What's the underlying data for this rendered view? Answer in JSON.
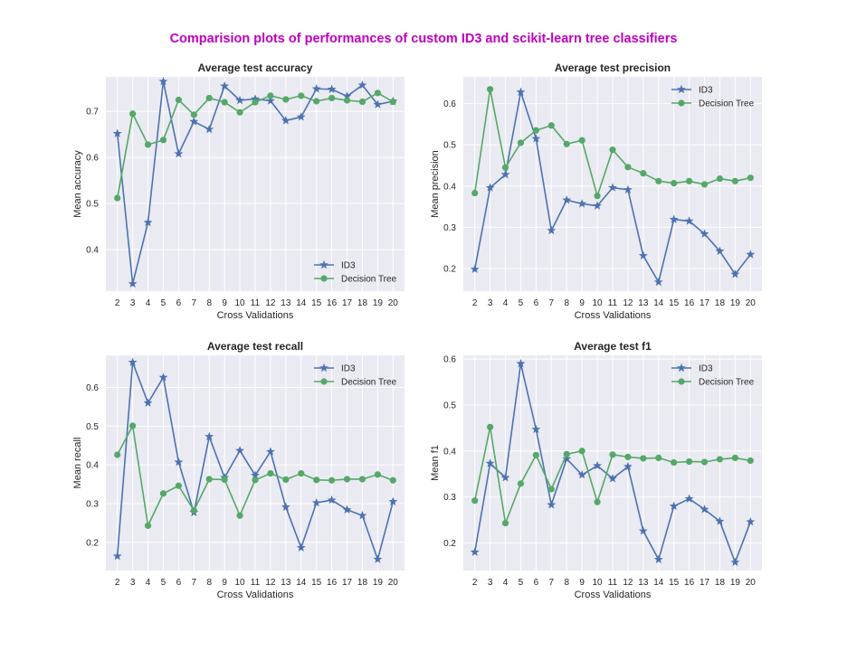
{
  "suptitle": "Comparision plots of performances of custom ID3 and scikit-learn tree classifiers",
  "colors": {
    "id3": "#4c72b0",
    "dt": "#55a868",
    "panel_bg": "#eaeaf2",
    "grid": "#ffffff",
    "title": "#bf00bf"
  },
  "chart_data": [
    {
      "type": "line",
      "title": "Average test accuracy",
      "xlabel": "Cross Validations",
      "ylabel": "Mean accuracy",
      "x": [
        2,
        3,
        4,
        5,
        6,
        7,
        8,
        9,
        10,
        11,
        12,
        13,
        14,
        15,
        16,
        17,
        18,
        19,
        20
      ],
      "yticks": [
        0.4,
        0.5,
        0.6,
        0.7
      ],
      "ylim": [
        0.31,
        0.775
      ],
      "grid": true,
      "legend": "lower right",
      "series": [
        {
          "name": "ID3",
          "marker": "star",
          "values": [
            0.652,
            0.326,
            0.459,
            0.765,
            0.608,
            0.678,
            0.661,
            0.755,
            0.724,
            0.727,
            0.723,
            0.68,
            0.688,
            0.749,
            0.748,
            0.733,
            0.757,
            0.715,
            0.722
          ]
        },
        {
          "name": "Decision Tree",
          "marker": "circle",
          "values": [
            0.512,
            0.695,
            0.628,
            0.638,
            0.725,
            0.693,
            0.729,
            0.72,
            0.698,
            0.72,
            0.734,
            0.726,
            0.734,
            0.722,
            0.729,
            0.724,
            0.721,
            0.74,
            0.721
          ]
        }
      ]
    },
    {
      "type": "line",
      "title": "Average test precision",
      "xlabel": "Cross Validations",
      "ylabel": "Mean precision",
      "x": [
        2,
        3,
        4,
        5,
        6,
        7,
        8,
        9,
        10,
        11,
        12,
        13,
        14,
        15,
        16,
        17,
        18,
        19,
        20
      ],
      "yticks": [
        0.2,
        0.3,
        0.4,
        0.5,
        0.6
      ],
      "ylim": [
        0.145,
        0.665
      ],
      "grid": true,
      "legend": "upper right",
      "series": [
        {
          "name": "ID3",
          "marker": "star",
          "values": [
            0.198,
            0.396,
            0.428,
            0.628,
            0.515,
            0.292,
            0.366,
            0.357,
            0.352,
            0.396,
            0.391,
            0.231,
            0.167,
            0.319,
            0.315,
            0.284,
            0.242,
            0.186,
            0.234
          ]
        },
        {
          "name": "Decision Tree",
          "marker": "circle",
          "values": [
            0.383,
            0.635,
            0.445,
            0.505,
            0.535,
            0.547,
            0.502,
            0.511,
            0.376,
            0.488,
            0.446,
            0.431,
            0.412,
            0.407,
            0.412,
            0.404,
            0.418,
            0.412,
            0.42
          ]
        }
      ]
    },
    {
      "type": "line",
      "title": "Average test recall",
      "xlabel": "Cross Validations",
      "ylabel": "Mean recall",
      "x": [
        2,
        3,
        4,
        5,
        6,
        7,
        8,
        9,
        10,
        11,
        12,
        13,
        14,
        15,
        16,
        17,
        18,
        19,
        20
      ],
      "yticks": [
        0.2,
        0.3,
        0.4,
        0.5,
        0.6
      ],
      "ylim": [
        0.127,
        0.683
      ],
      "grid": true,
      "legend": "upper right",
      "series": [
        {
          "name": "ID3",
          "marker": "star",
          "values": [
            0.164,
            0.665,
            0.56,
            0.626,
            0.407,
            0.277,
            0.473,
            0.367,
            0.437,
            0.373,
            0.434,
            0.291,
            0.186,
            0.302,
            0.309,
            0.284,
            0.269,
            0.156,
            0.305
          ]
        },
        {
          "name": "Decision Tree",
          "marker": "circle",
          "values": [
            0.426,
            0.501,
            0.243,
            0.326,
            0.346,
            0.282,
            0.363,
            0.362,
            0.269,
            0.361,
            0.378,
            0.362,
            0.378,
            0.361,
            0.36,
            0.363,
            0.363,
            0.375,
            0.36
          ]
        }
      ]
    },
    {
      "type": "line",
      "title": "Average test f1",
      "xlabel": "Cross Validations",
      "ylabel": "Mean f1",
      "x": [
        2,
        3,
        4,
        5,
        6,
        7,
        8,
        9,
        10,
        11,
        12,
        13,
        14,
        15,
        16,
        17,
        18,
        19,
        20
      ],
      "yticks": [
        0.2,
        0.3,
        0.4,
        0.5,
        0.6
      ],
      "ylim": [
        0.14,
        0.608
      ],
      "grid": true,
      "legend": "upper right",
      "series": [
        {
          "name": "ID3",
          "marker": "star",
          "values": [
            0.18,
            0.373,
            0.342,
            0.59,
            0.447,
            0.283,
            0.383,
            0.348,
            0.368,
            0.34,
            0.366,
            0.226,
            0.164,
            0.28,
            0.296,
            0.273,
            0.247,
            0.158,
            0.246
          ]
        },
        {
          "name": "Decision Tree",
          "marker": "circle",
          "values": [
            0.292,
            0.452,
            0.243,
            0.329,
            0.391,
            0.317,
            0.393,
            0.4,
            0.289,
            0.392,
            0.387,
            0.384,
            0.385,
            0.375,
            0.377,
            0.376,
            0.382,
            0.385,
            0.379
          ]
        }
      ]
    }
  ]
}
